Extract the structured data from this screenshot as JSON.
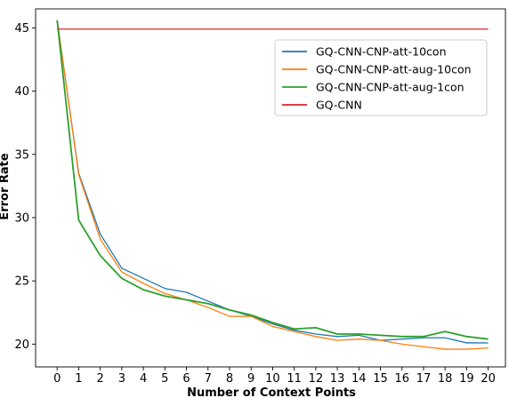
{
  "chart_data": {
    "type": "line",
    "xlabel": "Number of Context Points",
    "ylabel": "Error Rate",
    "x": [
      0,
      1,
      2,
      3,
      4,
      5,
      6,
      7,
      8,
      9,
      10,
      11,
      12,
      13,
      14,
      15,
      16,
      17,
      18,
      19,
      20
    ],
    "xticks": [
      "0",
      "1",
      "2",
      "3",
      "4",
      "5",
      "6",
      "7",
      "8",
      "9",
      "10",
      "11",
      "12",
      "13",
      "14",
      "15",
      "16",
      "17",
      "18",
      "19",
      "20"
    ],
    "yticks": [
      "20",
      "25",
      "30",
      "35",
      "40",
      "45"
    ],
    "ytick_values": [
      20,
      25,
      30,
      35,
      40,
      45
    ],
    "xlim": [
      -1,
      20.8
    ],
    "ylim": [
      18.2,
      46.5
    ],
    "grid": false,
    "legend_position": "upper right",
    "series": [
      {
        "name": "GQ-CNN-CNP-att-10con",
        "color": "#1f77b4",
        "values": [
          45.6,
          33.5,
          28.7,
          26.0,
          25.2,
          24.4,
          24.1,
          23.4,
          22.7,
          22.2,
          21.6,
          21.1,
          20.8,
          20.6,
          20.7,
          20.3,
          20.4,
          20.5,
          20.5,
          20.1,
          20.1
        ]
      },
      {
        "name": "GQ-CNN-CNP-att-aug-10con",
        "color": "#ff7f0e",
        "values": [
          45.6,
          33.4,
          28.3,
          25.7,
          24.8,
          24.0,
          23.5,
          22.9,
          22.2,
          22.2,
          21.4,
          21.0,
          20.6,
          20.3,
          20.4,
          20.3,
          20.0,
          19.8,
          19.6,
          19.6,
          19.7
        ]
      },
      {
        "name": "GQ-CNN-CNP-att-aug-1con",
        "color": "#2ca02c",
        "values": [
          45.6,
          29.8,
          27.0,
          25.2,
          24.3,
          23.8,
          23.5,
          23.2,
          22.7,
          22.3,
          21.7,
          21.2,
          21.3,
          20.8,
          20.8,
          20.7,
          20.6,
          20.6,
          21.0,
          20.6,
          20.4
        ]
      },
      {
        "name": "GQ-CNN",
        "color": "#d62728",
        "values": [
          44.9,
          44.9,
          44.9,
          44.9,
          44.9,
          44.9,
          44.9,
          44.9,
          44.9,
          44.9,
          44.9,
          44.9,
          44.9,
          44.9,
          44.9,
          44.9,
          44.9,
          44.9,
          44.9,
          44.9,
          44.9
        ]
      }
    ]
  }
}
